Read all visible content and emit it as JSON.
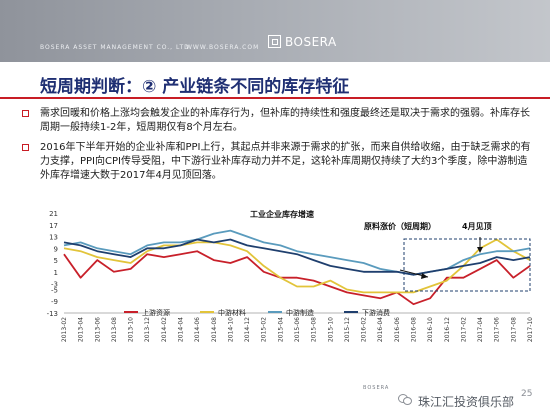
{
  "header": {
    "company_line": "BOSERA ASSET MANAGEMENT CO., LTD",
    "url": "WWW.BOSERA.COM",
    "logo_text": "BOSERA"
  },
  "title": "短周期判断：② 产业链条不同的库存特征",
  "bullets": [
    "需求回暖和价格上涨均会触发企业的补库存行为，但补库的持续性和强度最终还是取决于需求的强弱。补库存长周期一般持续1-2年，短周期仅有8个月左右。",
    "2016年下半年开始的企业补库和PPI上行，其起点并非来源于需求的扩张，而来自供给收缩，由于缺乏需求的有力支撑，PPI向CPI传导受阻，中下游行业补库存动力并不足，这轮补库周期仅持续了大约3个季度，除中游制造外库存增速大数于2017年4月见顶回落。"
  ],
  "chart_data": {
    "type": "line",
    "ylim": [
      -13,
      21
    ],
    "yticks": [
      21,
      17,
      13,
      9,
      5,
      1,
      -3,
      -5,
      -9,
      -13
    ],
    "x": [
      "2013-02",
      "2013-04",
      "2013-06",
      "2013-08",
      "2013-10",
      "2013-12",
      "2014-02",
      "2014-04",
      "2014-06",
      "2014-08",
      "2014-10",
      "2014-12",
      "2015-02",
      "2015-04",
      "2015-06",
      "2015-08",
      "2015-10",
      "2015-12",
      "2016-02",
      "2016-04",
      "2016-06",
      "2016-08",
      "2016-10",
      "2016-12",
      "2017-02",
      "2017-04",
      "2017-06",
      "2017-08",
      "2017-10"
    ],
    "series": [
      {
        "name": "上游资源",
        "color": "#c8202a",
        "values": [
          7,
          -1,
          5,
          1,
          2,
          7,
          6,
          7,
          8,
          5,
          4,
          6,
          1,
          -1,
          -1,
          -2,
          -4,
          -6,
          -7,
          -8,
          -6,
          -10,
          -8,
          -1,
          -1,
          2,
          5,
          -1,
          3
        ]
      },
      {
        "name": "中游材料",
        "color": "#e2c43a",
        "values": [
          9,
          8,
          6,
          5,
          4,
          8,
          10,
          10,
          11,
          11,
          10,
          8,
          3,
          -1,
          -4,
          -4,
          -2,
          -5,
          -6,
          -6,
          -6,
          -6,
          -4,
          -2,
          3,
          9,
          12,
          8,
          5
        ]
      },
      {
        "name": "中游制造",
        "color": "#5a9bbd",
        "values": [
          10,
          11,
          9,
          8,
          7,
          10,
          11,
          11,
          12,
          14,
          15,
          13,
          11,
          10,
          8,
          7,
          6,
          5,
          4,
          2,
          1,
          0,
          1,
          2,
          5,
          7,
          8,
          8,
          9
        ]
      },
      {
        "name": "下游消费",
        "color": "#1f3f6e",
        "values": [
          11,
          10,
          8,
          7,
          6,
          9,
          9,
          10,
          12,
          11,
          12,
          10,
          9,
          8,
          7,
          5,
          3,
          2,
          1,
          1,
          1,
          0,
          1,
          2,
          3,
          4,
          6,
          5,
          6
        ]
      }
    ],
    "annotations": [
      "工业企业库存增速",
      "原料涨价（短周期）",
      "4月见顶"
    ]
  },
  "footer": {
    "brand_small": "BOSERA",
    "club": "珠江汇投资俱乐部",
    "page_number": "25"
  }
}
